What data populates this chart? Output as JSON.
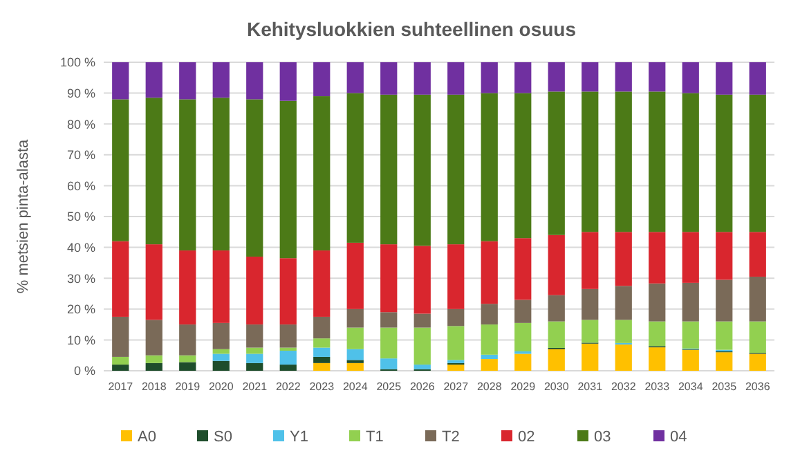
{
  "chart_data": {
    "type": "bar",
    "title": "Kehitysluokkien suhteellinen osuus",
    "ylabel": "% metsien pinta-alasta",
    "stacked": true,
    "grid": "y",
    "legend": "bottom",
    "categories": [
      "2017",
      "2018",
      "2019",
      "2020",
      "2021",
      "2022",
      "2023",
      "2024",
      "2025",
      "2026",
      "2027",
      "2028",
      "2029",
      "2030",
      "2031",
      "2032",
      "2033",
      "2034",
      "2035",
      "2036"
    ],
    "ylim": [
      0,
      100
    ],
    "yticks": [
      {
        "value": 0,
        "label": "0 %"
      },
      {
        "value": 10,
        "label": "10 %"
      },
      {
        "value": 20,
        "label": "20 %"
      },
      {
        "value": 30,
        "label": "30 %"
      },
      {
        "value": 40,
        "label": "40 %"
      },
      {
        "value": 50,
        "label": "50 %"
      },
      {
        "value": 60,
        "label": "60 %"
      },
      {
        "value": 70,
        "label": "70 %"
      },
      {
        "value": 80,
        "label": "80 %"
      },
      {
        "value": 90,
        "label": "90 %"
      },
      {
        "value": 100,
        "label": "100 %"
      }
    ],
    "series": [
      {
        "name": "A0",
        "color": "#ffc000",
        "values": [
          0,
          0,
          0,
          0,
          0,
          0,
          2.5,
          2.5,
          0,
          0,
          2,
          3.8,
          5.5,
          7,
          8.8,
          8.5,
          7.6,
          6.8,
          6,
          5.5
        ]
      },
      {
        "name": "S0",
        "color": "#1e4d2b",
        "values": [
          2,
          2.5,
          2.8,
          3.2,
          2.5,
          2,
          2,
          1,
          0.5,
          0.5,
          0.5,
          0,
          0,
          0.4,
          0.3,
          0,
          0.4,
          0.2,
          0.3,
          0.3
        ]
      },
      {
        "name": "Y1",
        "color": "#4fc1e9",
        "values": [
          0,
          0,
          0,
          2.3,
          3,
          4.5,
          3,
          3.5,
          3.5,
          1.5,
          1,
          1.4,
          0.8,
          0,
          0,
          0.5,
          0,
          0.2,
          0.5,
          0
        ]
      },
      {
        "name": "T1",
        "color": "#92d050",
        "values": [
          2.5,
          2.5,
          2.2,
          1.5,
          2,
          1,
          3,
          7,
          10,
          12,
          11,
          9.8,
          9.2,
          8.6,
          7.4,
          7.5,
          8,
          8.8,
          9.2,
          10.2
        ]
      },
      {
        "name": "T2",
        "color": "#7a6a58",
        "values": [
          13,
          11.5,
          10,
          8.5,
          7.5,
          7.5,
          7,
          6,
          5,
          4.5,
          5.5,
          6.7,
          7.5,
          8.5,
          10,
          11,
          12.3,
          12.5,
          13.5,
          14.5
        ]
      },
      {
        "name": "02",
        "color": "#d9262e",
        "values": [
          24.5,
          24.5,
          24,
          23.5,
          22,
          21.5,
          21.5,
          21.5,
          22,
          22,
          21,
          20.3,
          20,
          19.5,
          18.5,
          17.5,
          16.7,
          16.5,
          15.5,
          14.5
        ]
      },
      {
        "name": "03",
        "color": "#4c7a17",
        "values": [
          46,
          47.5,
          49,
          49.5,
          51,
          51,
          50,
          48.5,
          48.5,
          49,
          48.5,
          48,
          47,
          46.5,
          45.5,
          45.5,
          45.5,
          45,
          44.5,
          44.5
        ]
      },
      {
        "name": "04",
        "color": "#7030a0",
        "values": [
          12,
          11.5,
          12,
          11.5,
          12,
          12.5,
          11,
          10,
          10.5,
          10.5,
          10.5,
          10,
          10,
          9.5,
          9.5,
          9.5,
          9.5,
          10,
          10.5,
          10.5
        ]
      }
    ]
  }
}
